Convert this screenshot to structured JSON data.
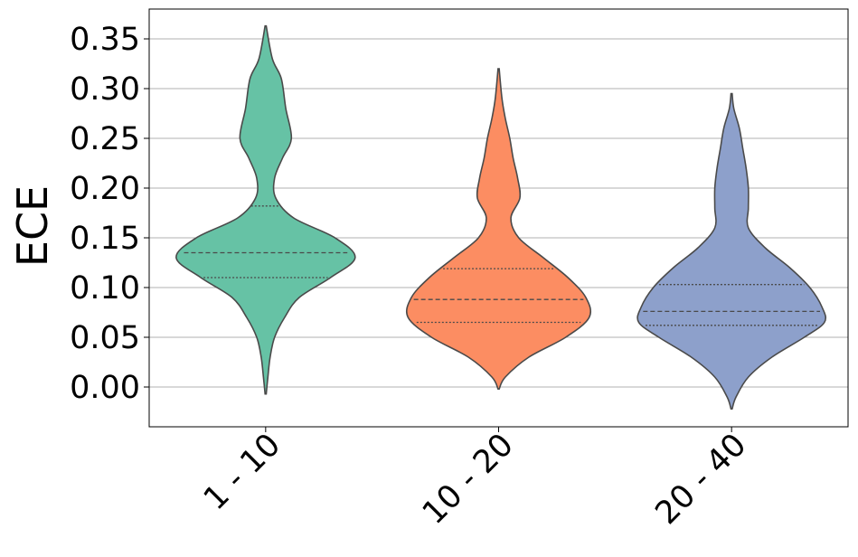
{
  "chart_data": {
    "type": "violin",
    "title": "",
    "xlabel": "",
    "ylabel": "ECE",
    "ylim": [
      -0.04,
      0.38
    ],
    "yticks": [
      "0.00",
      "0.05",
      "0.10",
      "0.15",
      "0.20",
      "0.25",
      "0.30",
      "0.35"
    ],
    "y_grid": true,
    "categories": [
      "1 - 10",
      "10 - 20",
      "20 - 40"
    ],
    "series": [
      {
        "category": "1 - 10",
        "color": "#66c2a5",
        "range": [
          -0.007,
          0.363
        ],
        "quartiles": [
          0.11,
          0.135,
          0.182
        ],
        "density_profile": [
          [
            0.363,
            0.005
          ],
          [
            0.33,
            0.06
          ],
          [
            0.31,
            0.14
          ],
          [
            0.28,
            0.18
          ],
          [
            0.25,
            0.23
          ],
          [
            0.23,
            0.15
          ],
          [
            0.21,
            0.08
          ],
          [
            0.19,
            0.09
          ],
          [
            0.17,
            0.25
          ],
          [
            0.15,
            0.62
          ],
          [
            0.13,
            0.8
          ],
          [
            0.11,
            0.58
          ],
          [
            0.09,
            0.3
          ],
          [
            0.07,
            0.17
          ],
          [
            0.05,
            0.08
          ],
          [
            0.03,
            0.04
          ],
          [
            0.01,
            0.02
          ],
          [
            -0.007,
            0.005
          ]
        ]
      },
      {
        "category": "10 - 20",
        "color": "#fc8d62",
        "range": [
          -0.002,
          0.32
        ],
        "quartiles": [
          0.065,
          0.088,
          0.119
        ],
        "density_profile": [
          [
            0.32,
            0.005
          ],
          [
            0.29,
            0.03
          ],
          [
            0.27,
            0.06
          ],
          [
            0.25,
            0.1
          ],
          [
            0.23,
            0.13
          ],
          [
            0.21,
            0.17
          ],
          [
            0.19,
            0.19
          ],
          [
            0.17,
            0.11
          ],
          [
            0.15,
            0.18
          ],
          [
            0.13,
            0.4
          ],
          [
            0.11,
            0.62
          ],
          [
            0.09,
            0.78
          ],
          [
            0.07,
            0.81
          ],
          [
            0.05,
            0.6
          ],
          [
            0.03,
            0.27
          ],
          [
            0.01,
            0.06
          ],
          [
            -0.002,
            0.005
          ]
        ]
      },
      {
        "category": "20 - 40",
        "color": "#8da0cb",
        "range": [
          -0.022,
          0.295
        ],
        "quartiles": [
          0.062,
          0.076,
          0.103
        ],
        "density_profile": [
          [
            0.295,
            0.005
          ],
          [
            0.28,
            0.02
          ],
          [
            0.26,
            0.07
          ],
          [
            0.24,
            0.1
          ],
          [
            0.22,
            0.13
          ],
          [
            0.2,
            0.15
          ],
          [
            0.18,
            0.15
          ],
          [
            0.16,
            0.15
          ],
          [
            0.14,
            0.3
          ],
          [
            0.12,
            0.52
          ],
          [
            0.1,
            0.7
          ],
          [
            0.08,
            0.81
          ],
          [
            0.065,
            0.83
          ],
          [
            0.05,
            0.65
          ],
          [
            0.03,
            0.36
          ],
          [
            0.01,
            0.15
          ],
          [
            -0.01,
            0.04
          ],
          [
            -0.022,
            0.005
          ]
        ]
      }
    ]
  }
}
